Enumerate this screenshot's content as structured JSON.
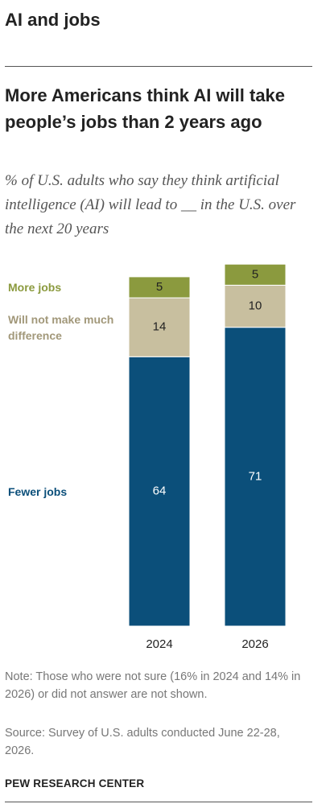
{
  "header": {
    "kicker": "AI and jobs"
  },
  "chart_data": {
    "type": "stacked-bar",
    "title": "More Americans think AI will take people’s jobs than 2 years ago",
    "subtitle": "% of U.S. adults who say they think artificial intelligence (AI) will lead to __ in the U.S. over the next 20 years",
    "categories": [
      "2024",
      "2026"
    ],
    "series": [
      {
        "name": "Fewer jobs",
        "color": "#0b4f7a",
        "values": [
          64,
          71
        ]
      },
      {
        "name": "Will not make much difference",
        "color": "#c8bf9f",
        "values": [
          14,
          10
        ]
      },
      {
        "name": "More jobs",
        "color": "#8b9a3e",
        "values": [
          5,
          5
        ]
      }
    ]
  },
  "footer": {
    "note": "Note: Those who were not sure (16% in 2024 and 14% in 2026) or did not answer are not shown.",
    "source": "Source: Survey of U.S. adults conducted June 22-28, 2026.",
    "credit": "PEW RESEARCH CENTER"
  }
}
